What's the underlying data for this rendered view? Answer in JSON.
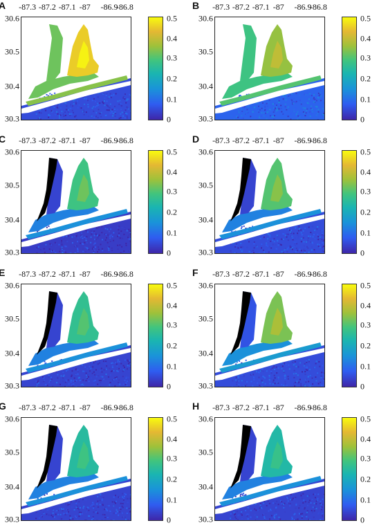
{
  "lon_ticks": [
    "-87.3",
    "-87.2",
    "-87.1",
    "-87",
    "-86.9",
    "-86.8"
  ],
  "lat_ticks": [
    "30.6",
    "30.5",
    "30.4",
    "30.3"
  ],
  "colorbar_ticks": [
    "0.5",
    "0.4",
    "0.3",
    "0.2",
    "0.1",
    "0"
  ],
  "colors": {
    "colormap": [
      "#3e26a8",
      "#2f5cf0",
      "#1a93d9",
      "#1ab5b1",
      "#41c47e",
      "#9fc13a",
      "#e4b833",
      "#f9fb0e"
    ],
    "land": "#ffffff",
    "masked": "#000000"
  },
  "panels": [
    {
      "label": "A",
      "east_level": 0.45,
      "west_level": 0.32,
      "gulf_level": 0.05
    },
    {
      "label": "B",
      "east_level": 0.35,
      "west_level": 0.28,
      "gulf_level": 0.08
    },
    {
      "label": "C",
      "east_level": 0.28,
      "west_level": 0.12,
      "gulf_level": 0.03
    },
    {
      "label": "D",
      "east_level": 0.3,
      "west_level": 0.12,
      "gulf_level": 0.05
    },
    {
      "label": "E",
      "east_level": 0.26,
      "west_level": 0.12,
      "gulf_level": 0.04
    },
    {
      "label": "F",
      "east_level": 0.33,
      "west_level": 0.14,
      "gulf_level": 0.05
    },
    {
      "label": "G",
      "east_level": 0.24,
      "west_level": 0.12,
      "gulf_level": 0.04
    },
    {
      "label": "H",
      "east_level": 0.23,
      "west_level": 0.12,
      "gulf_level": 0.04
    }
  ]
}
